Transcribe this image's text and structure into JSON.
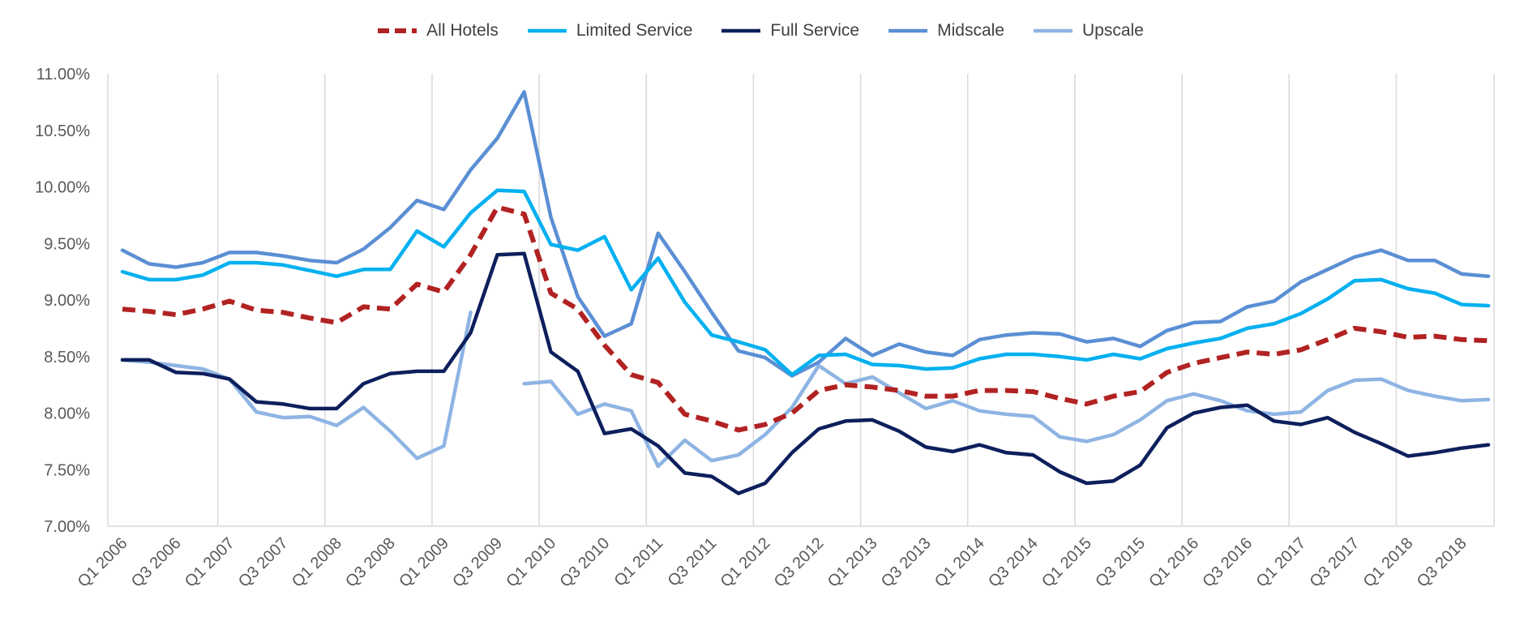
{
  "chart_data": {
    "type": "line",
    "title": "",
    "xlabel": "",
    "ylabel": "",
    "ylim": [
      0.07,
      0.11
    ],
    "ytick_labels": [
      "7.00%",
      "7.50%",
      "8.00%",
      "8.50%",
      "9.00%",
      "9.50%",
      "10.00%",
      "10.50%",
      "11.00%"
    ],
    "legend_position": "top",
    "grid": "vertical",
    "categories": [
      "Q1 2006",
      "Q2 2006",
      "Q3 2006",
      "Q4 2006",
      "Q1 2007",
      "Q2 2007",
      "Q3 2007",
      "Q4 2007",
      "Q1 2008",
      "Q2 2008",
      "Q3 2008",
      "Q4 2008",
      "Q1 2009",
      "Q2 2009",
      "Q3 2009",
      "Q4 2009",
      "Q1 2010",
      "Q2 2010",
      "Q3 2010",
      "Q4 2010",
      "Q1 2011",
      "Q2 2011",
      "Q3 2011",
      "Q4 2011",
      "Q1 2012",
      "Q2 2012",
      "Q3 2012",
      "Q4 2012",
      "Q1 2013",
      "Q2 2013",
      "Q3 2013",
      "Q4 2013",
      "Q1 2014",
      "Q2 2014",
      "Q3 2014",
      "Q4 2014",
      "Q1 2015",
      "Q2 2015",
      "Q3 2015",
      "Q4 2015",
      "Q1 2016",
      "Q2 2016",
      "Q3 2016",
      "Q4 2016",
      "Q1 2017",
      "Q2 2017",
      "Q3 2017",
      "Q4 2017",
      "Q1 2018",
      "Q2 2018",
      "Q3 2018",
      "Q4 2018"
    ],
    "xtick_labels": [
      "Q1 2006",
      "Q3 2006",
      "Q1 2007",
      "Q3 2007",
      "Q1 2008",
      "Q3 2008",
      "Q1 2009",
      "Q3 2009",
      "Q1 2010",
      "Q3 2010",
      "Q1 2011",
      "Q3 2011",
      "Q1 2012",
      "Q3 2012",
      "Q1 2013",
      "Q3 2013",
      "Q1 2014",
      "Q3 2014",
      "Q1 2015",
      "Q3 2015",
      "Q1 2016",
      "Q3 2016",
      "Q1 2017",
      "Q3 2017",
      "Q1 2018",
      "Q3 2018"
    ],
    "series": [
      {
        "name": "All Hotels",
        "color": "#B22222",
        "dash": true,
        "values": [
          0.0892,
          0.089,
          0.0887,
          0.0892,
          0.0899,
          0.0891,
          0.0889,
          0.0884,
          0.088,
          0.0894,
          0.0892,
          0.0914,
          0.0907,
          0.094,
          0.0982,
          0.0976,
          0.0906,
          0.0892,
          0.086,
          0.0834,
          0.0827,
          0.0799,
          0.0793,
          0.0785,
          0.079,
          0.08,
          0.082,
          0.0825,
          0.0823,
          0.082,
          0.0815,
          0.0815,
          0.082,
          0.082,
          0.0819,
          0.0813,
          0.0808,
          0.0815,
          0.0819,
          0.0836,
          0.0844,
          0.0849,
          0.0854,
          0.0852,
          0.0856,
          0.0865,
          0.0875,
          0.0872,
          0.0867,
          0.0868,
          0.0865,
          0.0864
        ]
      },
      {
        "name": "Limited Service",
        "color": "#00B0F0",
        "dash": false,
        "values": [
          0.0925,
          0.0918,
          0.0918,
          0.0922,
          0.0933,
          0.0933,
          0.0931,
          0.0926,
          0.0921,
          0.0927,
          0.0927,
          0.0961,
          0.0947,
          0.0977,
          0.0997,
          0.0996,
          0.0949,
          0.0944,
          0.0956,
          0.0909,
          0.0937,
          0.0898,
          0.0869,
          0.0863,
          0.0856,
          0.0834,
          0.0851,
          0.0852,
          0.0843,
          0.0842,
          0.0839,
          0.084,
          0.0848,
          0.0852,
          0.0852,
          0.085,
          0.0847,
          0.0852,
          0.0848,
          0.0857,
          0.0862,
          0.0866,
          0.0875,
          0.0879,
          0.0888,
          0.0901,
          0.0917,
          0.0918,
          0.091,
          0.0906,
          0.0896,
          0.0895
        ]
      },
      {
        "name": "Full Service",
        "color": "#0D1F5C",
        "dash": false,
        "values": [
          0.0847,
          0.0847,
          0.0836,
          0.0835,
          0.083,
          0.081,
          0.0808,
          0.0804,
          0.0804,
          0.0826,
          0.0835,
          0.0837,
          0.0837,
          0.0871,
          0.094,
          0.0941,
          0.0854,
          0.0837,
          0.0782,
          0.0786,
          0.0771,
          0.0747,
          0.0744,
          0.0729,
          0.0738,
          0.0765,
          0.0786,
          0.0793,
          0.0794,
          0.0784,
          0.077,
          0.0766,
          0.0772,
          0.0765,
          0.0763,
          0.0748,
          0.0738,
          0.074,
          0.0754,
          0.0787,
          0.08,
          0.0805,
          0.0807,
          0.0793,
          0.079,
          0.0796,
          0.0783,
          0.0773,
          0.0762,
          0.0765,
          0.0769,
          0.0772
        ]
      },
      {
        "name": "Midscale",
        "color": "#5B8FD4",
        "dash": false,
        "values": [
          0.0944,
          0.0932,
          0.0929,
          0.0933,
          0.0942,
          0.0942,
          0.0939,
          0.0935,
          0.0933,
          0.0945,
          0.0964,
          0.0988,
          0.098,
          0.1015,
          0.1043,
          0.1084,
          0.0973,
          0.0903,
          0.0868,
          0.0879,
          0.0959,
          0.0925,
          0.0889,
          0.0855,
          0.0849,
          0.0833,
          0.0845,
          0.0866,
          0.0851,
          0.0861,
          0.0854,
          0.0851,
          0.0865,
          0.0869,
          0.0871,
          0.087,
          0.0863,
          0.0866,
          0.0859,
          0.0873,
          0.088,
          0.0881,
          0.0894,
          0.0899,
          0.0916,
          0.0927,
          0.0938,
          0.0944,
          0.0935,
          0.0935,
          0.0923,
          0.0921
        ]
      },
      {
        "name": "Upscale",
        "color": "#8EB4E3",
        "dash": false,
        "values": [
          0.0847,
          0.0845,
          0.0842,
          0.0839,
          0.083,
          0.0801,
          0.0796,
          0.0797,
          0.0789,
          0.0805,
          0.0784,
          0.076,
          0.0771,
          0.0889,
          null,
          0.0826,
          0.0828,
          0.0799,
          0.0808,
          0.0802,
          0.0753,
          0.0776,
          0.0758,
          0.0763,
          0.0781,
          0.0805,
          0.0842,
          0.0826,
          0.0832,
          0.0818,
          0.0804,
          0.0811,
          0.0802,
          0.0799,
          0.0797,
          0.0779,
          0.0775,
          0.0781,
          0.0794,
          0.0811,
          0.0817,
          0.0811,
          0.0802,
          0.0799,
          0.0801,
          0.082,
          0.0829,
          0.083,
          0.082,
          0.0815,
          0.0811,
          0.0812
        ]
      }
    ]
  }
}
